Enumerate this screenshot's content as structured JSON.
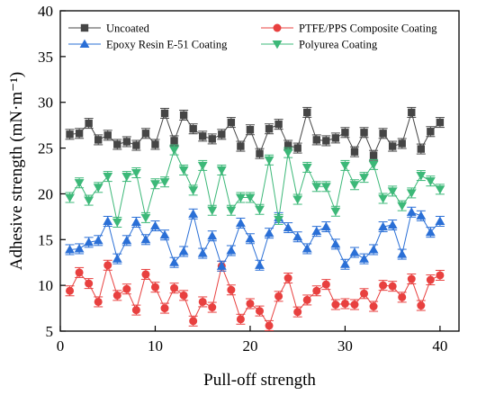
{
  "chart_data": {
    "type": "line",
    "xlabel": "Pull-off strength",
    "ylabel": "Adhesive strength (mN·m⁻¹)",
    "xlim": [
      0,
      42
    ],
    "ylim": [
      5,
      40
    ],
    "xticks": [
      0,
      10,
      20,
      30,
      40
    ],
    "yticks": [
      5,
      10,
      15,
      20,
      25,
      30,
      35,
      40
    ],
    "grid": false,
    "legend_placement": "top",
    "x": [
      1,
      2,
      3,
      4,
      5,
      6,
      7,
      8,
      9,
      10,
      11,
      12,
      13,
      14,
      15,
      16,
      17,
      18,
      19,
      20,
      21,
      22,
      23,
      24,
      25,
      26,
      27,
      28,
      29,
      30,
      31,
      32,
      33,
      34,
      35,
      36,
      37,
      38,
      39,
      40
    ],
    "series": [
      {
        "name": "Uncoated",
        "color": "#454545",
        "marker": "square",
        "values": [
          26.5,
          26.6,
          27.7,
          25.9,
          26.4,
          25.4,
          25.7,
          25.3,
          26.6,
          25.4,
          28.8,
          25.8,
          28.6,
          27.1,
          26.3,
          26.0,
          26.5,
          27.8,
          25.2,
          27.0,
          24.4,
          27.1,
          27.6,
          25.3,
          25.0,
          28.9,
          25.9,
          25.8,
          26.1,
          26.7,
          24.6,
          26.7,
          24.2,
          26.6,
          25.2,
          25.5,
          28.9,
          24.9,
          26.8,
          27.8
        ]
      },
      {
        "name": "PTFE/PPS Composite Coating",
        "color": "#e8403f",
        "marker": "circle",
        "values": [
          9.4,
          11.4,
          10.2,
          8.2,
          12.2,
          8.9,
          9.6,
          7.3,
          11.2,
          9.8,
          7.5,
          9.7,
          8.9,
          6.1,
          8.2,
          7.6,
          12.1,
          9.5,
          6.3,
          8.0,
          7.2,
          5.6,
          8.8,
          10.8,
          7.1,
          8.4,
          9.4,
          10.1,
          7.9,
          8.0,
          7.9,
          9.1,
          7.7,
          10.0,
          9.9,
          8.7,
          10.7,
          7.8,
          10.6,
          11.1
        ]
      },
      {
        "name": "Epoxy Resin E-51 Coating",
        "color": "#2a6fd6",
        "marker": "triangle-up",
        "values": [
          13.9,
          14.0,
          14.7,
          14.9,
          17.0,
          12.9,
          14.9,
          16.9,
          15.0,
          16.5,
          15.5,
          12.5,
          13.7,
          17.8,
          13.5,
          15.4,
          12.1,
          13.8,
          16.8,
          15.1,
          12.2,
          15.7,
          17.4,
          16.3,
          15.3,
          14.0,
          15.9,
          16.4,
          14.5,
          12.3,
          13.6,
          12.9,
          13.9,
          16.4,
          16.6,
          13.4,
          18.0,
          17.6,
          15.8,
          17.0
        ]
      },
      {
        "name": "Polyurea Coating",
        "color": "#3cb878",
        "marker": "triangle-down",
        "values": [
          19.6,
          21.2,
          19.3,
          20.7,
          21.9,
          16.9,
          21.9,
          22.3,
          17.4,
          21.1,
          21.3,
          24.8,
          22.6,
          20.4,
          23.1,
          18.2,
          22.6,
          18.2,
          19.6,
          19.6,
          18.3,
          23.7,
          17.2,
          24.5,
          19.4,
          22.9,
          20.8,
          20.8,
          18.1,
          23.1,
          21.0,
          21.8,
          23.2,
          19.5,
          20.3,
          18.7,
          20.1,
          22.0,
          21.4,
          20.5
        ]
      }
    ]
  }
}
